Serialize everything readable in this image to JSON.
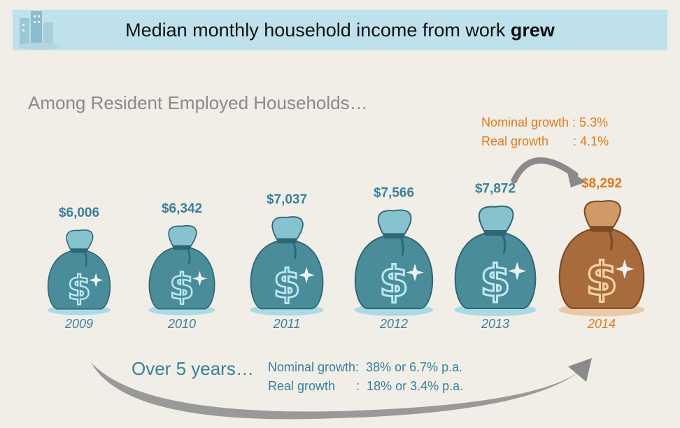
{
  "header": {
    "title_prefix": "Median monthly household income from work ",
    "title_emphasis": "grew",
    "icon": "city-buildings-icon"
  },
  "subtitle": "Among Resident Employed Households…",
  "annual_growth": {
    "nominal_line": "Nominal growth : 5.3%",
    "real_line": "Real growth       : 4.1%"
  },
  "five_year": {
    "label": "Over 5 years…",
    "nominal_line": "Nominal growth:  38% or 6.7% p.a.",
    "real_line": "Real growth      :  18% or 3.4% p.a."
  },
  "colors": {
    "teal": "#3a7f9b",
    "orange": "#e07a1c",
    "bag_teal": "#4a8c9a",
    "bag_brown": "#a86b3c"
  },
  "chart_data": {
    "type": "bar",
    "categories": [
      "2009",
      "2010",
      "2011",
      "2012",
      "2013",
      "2014"
    ],
    "values": [
      6006,
      6342,
      7037,
      7566,
      7872,
      8292
    ],
    "value_labels": [
      "$6,006",
      "$6,342",
      "$7,037",
      "$7,566",
      "$7,872",
      "$8,292"
    ],
    "highlight_category": "2014",
    "title": "Median monthly household income from work grew",
    "ylabel": "",
    "xlabel": ""
  }
}
